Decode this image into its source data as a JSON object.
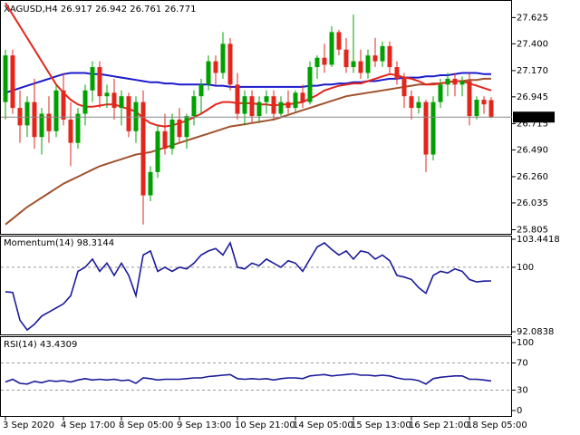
{
  "chart_data": [
    {
      "type": "candlestick",
      "title": "XAGUSD,H4",
      "categories": [
        "3 Sep 2020",
        null,
        null,
        null,
        null,
        null,
        null,
        null,
        "4 Sep 17:00",
        null,
        null,
        null,
        null,
        null,
        null,
        null,
        "8 Sep 05:00",
        null,
        null,
        null,
        null,
        null,
        null,
        null,
        "9 Sep 13:00",
        null,
        null,
        null,
        null,
        null,
        null,
        null,
        "10 Sep 21:00",
        null,
        null,
        null,
        null,
        null,
        null,
        null,
        "14 Sep 05:00",
        null,
        null,
        null,
        null,
        null,
        null,
        null,
        "15 Sep 13:00",
        null,
        null,
        null,
        null,
        null,
        null,
        null,
        "16 Sep 21:00",
        null,
        null,
        null,
        null,
        null,
        null,
        null,
        "18 Sep 05:00",
        null,
        null,
        null
      ],
      "open": [
        26.9,
        27.3,
        26.85,
        26.7,
        26.9,
        26.6,
        26.8,
        26.65,
        27.0,
        26.75,
        26.55,
        26.8,
        27.0,
        27.2,
        26.95,
        26.98,
        26.85,
        26.95,
        26.65,
        26.9,
        26.1,
        26.3,
        26.65,
        26.5,
        26.75,
        26.6,
        26.78,
        26.95,
        27.05,
        27.25,
        27.15,
        27.4,
        27.05,
        26.8,
        26.95,
        26.78,
        26.9,
        26.95,
        26.8,
        26.9,
        26.85,
        26.98,
        26.9,
        27.2,
        27.28,
        27.22,
        27.5,
        27.35,
        27.2,
        27.25,
        27.15,
        27.3,
        27.25,
        27.38,
        27.2,
        27.1,
        26.95,
        26.85,
        26.9,
        26.45,
        26.9,
        27.05,
        27.1,
        27.05,
        27.08,
        26.78,
        26.92,
        26.917
      ],
      "high": [
        27.35,
        27.35,
        27.0,
        26.95,
        27.1,
        26.85,
        26.95,
        27.05,
        27.15,
        26.9,
        26.85,
        27.05,
        27.25,
        27.25,
        27.05,
        27.1,
        27.0,
        26.98,
        26.95,
        27.0,
        26.35,
        26.7,
        26.8,
        26.8,
        26.85,
        26.8,
        27.0,
        27.1,
        27.3,
        27.3,
        27.5,
        27.45,
        27.15,
        27.0,
        27.0,
        26.95,
        27.0,
        27.0,
        26.95,
        27.0,
        27.0,
        27.05,
        27.25,
        27.3,
        27.4,
        27.55,
        27.52,
        27.45,
        27.65,
        27.35,
        27.35,
        27.45,
        27.42,
        27.42,
        27.25,
        27.15,
        27.0,
        26.95,
        26.92,
        26.95,
        27.1,
        27.15,
        27.15,
        27.12,
        27.15,
        26.95,
        26.95,
        26.942
      ],
      "low": [
        26.75,
        26.8,
        26.55,
        26.6,
        26.5,
        26.45,
        26.55,
        26.6,
        26.7,
        26.35,
        26.5,
        26.7,
        26.9,
        26.85,
        26.85,
        26.75,
        26.7,
        26.6,
        26.55,
        25.85,
        26.05,
        26.25,
        26.45,
        26.45,
        26.55,
        26.5,
        26.7,
        26.8,
        27.0,
        27.05,
        27.1,
        27.0,
        26.75,
        26.7,
        26.72,
        26.72,
        26.8,
        26.75,
        26.78,
        26.8,
        26.82,
        26.85,
        26.88,
        27.1,
        27.15,
        27.2,
        27.3,
        27.15,
        27.15,
        27.1,
        27.1,
        27.2,
        27.2,
        27.15,
        27.05,
        26.85,
        26.75,
        26.8,
        26.3,
        26.4,
        26.85,
        26.95,
        26.95,
        26.95,
        26.7,
        26.75,
        26.8,
        26.761
      ],
      "close": [
        27.3,
        26.85,
        26.7,
        26.9,
        26.6,
        26.8,
        26.65,
        27.0,
        26.75,
        26.55,
        26.8,
        27.0,
        27.2,
        26.95,
        26.98,
        26.85,
        26.95,
        26.65,
        26.9,
        26.1,
        26.3,
        26.65,
        26.5,
        26.75,
        26.6,
        26.78,
        26.95,
        27.05,
        27.25,
        27.15,
        27.4,
        27.05,
        26.8,
        26.95,
        26.78,
        26.9,
        26.95,
        26.8,
        26.9,
        26.85,
        26.98,
        26.9,
        27.2,
        27.28,
        27.22,
        27.5,
        27.35,
        27.2,
        27.25,
        27.15,
        27.3,
        27.25,
        27.38,
        27.2,
        27.1,
        26.95,
        26.85,
        26.9,
        26.45,
        26.9,
        27.05,
        27.1,
        27.05,
        27.08,
        26.78,
        26.92,
        26.88,
        26.771
      ],
      "up_color": "#00a000",
      "down_color": "#e3261c",
      "series": [
        {
          "color": "#a0522d",
          "values": [
            25.85,
            25.9,
            25.95,
            26.0,
            26.04,
            26.08,
            26.12,
            26.16,
            26.2,
            26.23,
            26.26,
            26.29,
            26.32,
            26.35,
            26.37,
            26.39,
            26.41,
            26.43,
            26.45,
            26.46,
            26.47,
            26.49,
            26.51,
            26.53,
            26.55,
            26.57,
            26.59,
            26.61,
            26.63,
            26.65,
            26.67,
            26.69,
            26.7,
            26.71,
            26.72,
            26.73,
            26.74,
            26.75,
            26.77,
            26.79,
            26.81,
            26.83,
            26.85,
            26.87,
            26.89,
            26.91,
            26.93,
            26.95,
            26.96,
            26.97,
            26.98,
            26.99,
            27.0,
            27.01,
            27.02,
            27.03,
            27.04,
            27.05,
            27.05,
            27.06,
            27.06,
            27.07,
            27.08,
            27.08,
            27.09,
            27.09,
            27.1,
            27.1
          ]
        },
        {
          "color": "#1a1acc",
          "values": [
            26.98,
            27.0,
            27.02,
            27.04,
            27.06,
            27.08,
            27.1,
            27.12,
            27.14,
            27.15,
            27.15,
            27.15,
            27.14,
            27.14,
            27.13,
            27.12,
            27.11,
            27.1,
            27.09,
            27.08,
            27.07,
            27.07,
            27.06,
            27.06,
            27.05,
            27.05,
            27.05,
            27.05,
            27.05,
            27.04,
            27.04,
            27.03,
            27.03,
            27.03,
            27.03,
            27.03,
            27.03,
            27.03,
            27.03,
            27.03,
            27.03,
            27.03,
            27.04,
            27.04,
            27.05,
            27.05,
            27.06,
            27.06,
            27.07,
            27.07,
            27.08,
            27.08,
            27.09,
            27.1,
            27.1,
            27.11,
            27.11,
            27.11,
            27.12,
            27.12,
            27.13,
            27.13,
            27.14,
            27.15,
            27.15,
            27.15,
            27.14,
            27.14
          ]
        },
        {
          "color": "#e3261c",
          "values": [
            27.75,
            27.65,
            27.55,
            27.45,
            27.35,
            27.25,
            27.15,
            27.05,
            26.98,
            26.92,
            26.88,
            26.86,
            26.86,
            26.87,
            26.88,
            26.88,
            26.86,
            26.84,
            26.82,
            26.76,
            26.72,
            26.7,
            26.69,
            26.7,
            26.72,
            26.74,
            26.77,
            26.8,
            26.84,
            26.88,
            26.9,
            26.9,
            26.89,
            26.89,
            26.89,
            26.88,
            26.88,
            26.87,
            26.88,
            26.88,
            26.89,
            26.9,
            26.93,
            26.96,
            27.0,
            27.02,
            27.04,
            27.05,
            27.06,
            27.06,
            27.08,
            27.1,
            27.12,
            27.14,
            27.13,
            27.11,
            27.1,
            27.08,
            27.05,
            27.05,
            27.06,
            27.07,
            27.08,
            27.08,
            27.06,
            27.04,
            27.02,
            27.0
          ]
        }
      ],
      "ylim": [
        25.77,
        27.76
      ],
      "yticks": [
        27.625,
        {
          "value": 27.4,
          "label": "27.400"
        },
        {
          "value": 27.17,
          "label": "27.170"
        },
        26.945,
        26.715,
        {
          "value": 26.49,
          "label": "26.490"
        },
        {
          "value": 26.26,
          "label": "26.260"
        },
        26.035,
        25.805
      ]
    },
    {
      "type": "line",
      "title": "Momentum(14)",
      "color": "#1a1a99",
      "values": [
        97.0,
        96.9,
        93.5,
        92.3,
        93.0,
        94.0,
        94.5,
        95.0,
        95.5,
        96.5,
        99.5,
        100.0,
        101.0,
        99.5,
        100.5,
        99.0,
        100.5,
        99.0,
        96.5,
        101.5,
        102.0,
        99.5,
        100.0,
        99.5,
        100.0,
        99.8,
        100.5,
        101.5,
        102.0,
        102.3,
        101.5,
        103.0,
        100.0,
        99.8,
        100.5,
        100.2,
        101.0,
        100.5,
        100.0,
        100.8,
        100.5,
        99.5,
        101.0,
        102.5,
        103.0,
        102.2,
        101.5,
        102.0,
        101.0,
        102.0,
        101.8,
        101.0,
        101.5,
        100.8,
        99.0,
        98.8,
        98.5,
        97.5,
        96.8,
        99.0,
        99.5,
        99.3,
        99.8,
        99.5,
        98.5,
        98.2,
        98.3,
        98.3144
      ],
      "ylim": [
        92.0838,
        103.4418
      ],
      "yticks": [
        103.4418,
        100,
        92.0838
      ],
      "levels": [
        100
      ]
    },
    {
      "type": "line",
      "title": "RSI(14)",
      "color": "#1a1a99",
      "values": [
        42,
        46,
        40,
        39,
        43,
        41,
        44,
        43,
        44,
        42,
        45,
        47,
        45,
        46,
        45,
        46,
        44,
        45,
        40,
        48,
        47,
        45,
        46,
        46,
        46,
        47,
        48,
        48,
        50,
        51,
        52,
        53,
        47,
        46,
        47,
        46,
        47,
        45,
        47,
        48,
        48,
        47,
        51,
        52,
        53,
        51,
        52,
        53,
        54,
        52,
        52,
        51,
        52,
        51,
        48,
        46,
        46,
        44,
        39,
        47,
        49,
        50,
        51,
        51,
        46,
        46,
        45,
        43.4309
      ],
      "ylim": [
        0,
        100
      ],
      "yticks": [
        100,
        70,
        30,
        0
      ],
      "levels": [
        70,
        30
      ]
    }
  ]
}
